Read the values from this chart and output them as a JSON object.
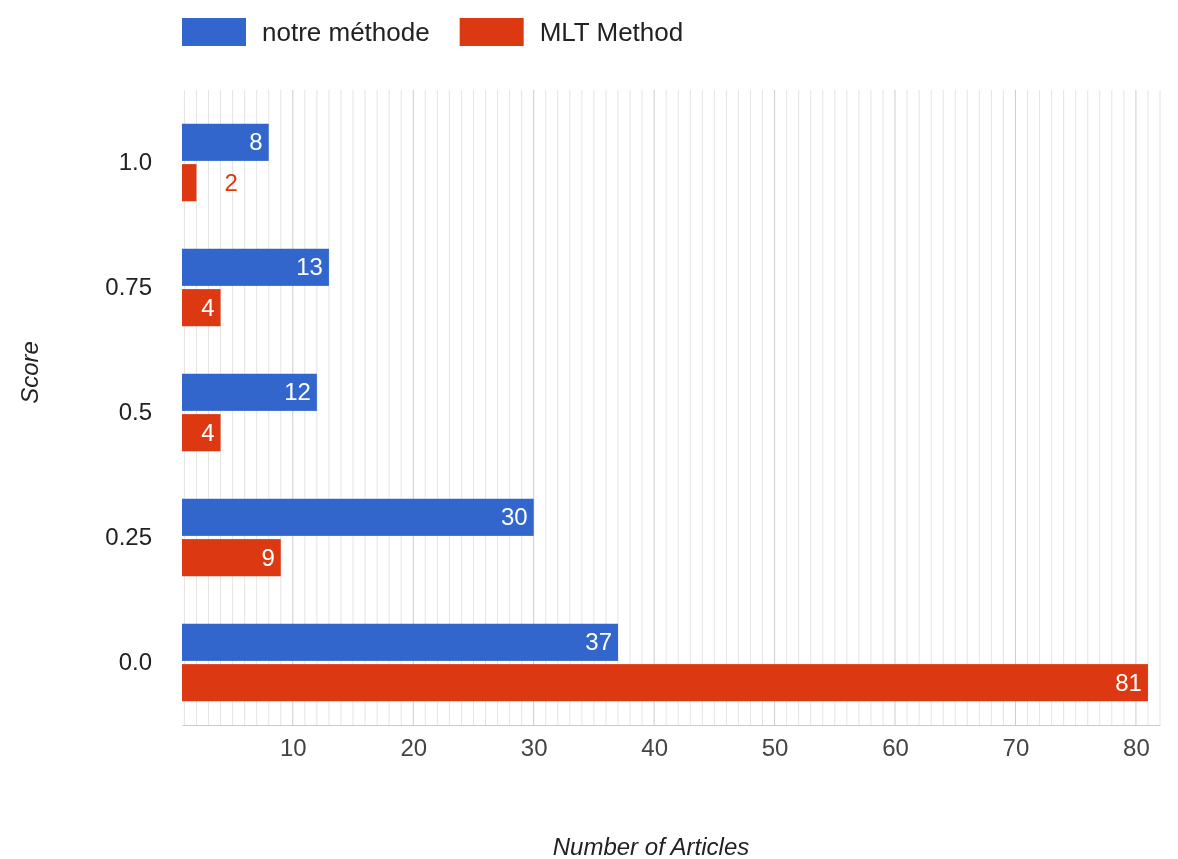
{
  "chart_data": {
    "type": "bar",
    "orientation": "horizontal",
    "xlabel": "Number of Articles",
    "ylabel": "Score",
    "categories": [
      "1.0",
      "0.75",
      "0.5",
      "0.25",
      "0.0"
    ],
    "series": [
      {
        "name": "notre méthode",
        "color": "#3366cc",
        "values": [
          8,
          13,
          12,
          30,
          37
        ]
      },
      {
        "name": "MLT Method",
        "color": "#dc3912",
        "values": [
          2,
          4,
          4,
          9,
          81
        ]
      }
    ],
    "xlim": [
      0.8,
      82
    ],
    "xticks": [
      {
        "value": 1,
        "label": null
      },
      {
        "value": 2,
        "label": null
      },
      {
        "value": 3,
        "label": null
      },
      {
        "value": 4,
        "label": null
      },
      {
        "value": 5,
        "label": null
      },
      {
        "value": 6,
        "label": null
      },
      {
        "value": 7,
        "label": null
      },
      {
        "value": 8,
        "label": null
      },
      {
        "value": 9,
        "label": null
      },
      10,
      {
        "value": 11,
        "label": null
      },
      {
        "value": 12,
        "label": null
      },
      {
        "value": 13,
        "label": null
      },
      {
        "value": 14,
        "label": null
      },
      {
        "value": 15,
        "label": null
      },
      {
        "value": 16,
        "label": null
      },
      {
        "value": 17,
        "label": null
      },
      {
        "value": 18,
        "label": null
      },
      {
        "value": 19,
        "label": null
      },
      20,
      {
        "value": 21,
        "label": null
      },
      {
        "value": 22,
        "label": null
      },
      {
        "value": 23,
        "label": null
      },
      {
        "value": 24,
        "label": null
      },
      {
        "value": 25,
        "label": null
      },
      {
        "value": 26,
        "label": null
      },
      {
        "value": 27,
        "label": null
      },
      {
        "value": 28,
        "label": null
      },
      {
        "value": 29,
        "label": null
      },
      30,
      {
        "value": 31,
        "label": null
      },
      {
        "value": 32,
        "label": null
      },
      {
        "value": 33,
        "label": null
      },
      {
        "value": 34,
        "label": null
      },
      {
        "value": 35,
        "label": null
      },
      {
        "value": 36,
        "label": null
      },
      {
        "value": 37,
        "label": null
      },
      {
        "value": 38,
        "label": null
      },
      {
        "value": 39,
        "label": null
      },
      40,
      {
        "value": 41,
        "label": null
      },
      {
        "value": 42,
        "label": null
      },
      {
        "value": 43,
        "label": null
      },
      {
        "value": 44,
        "label": null
      },
      {
        "value": 45,
        "label": null
      },
      {
        "value": 46,
        "label": null
      },
      {
        "value": 47,
        "label": null
      },
      {
        "value": 48,
        "label": null
      },
      {
        "value": 49,
        "label": null
      },
      50,
      {
        "value": 51,
        "label": null
      },
      {
        "value": 52,
        "label": null
      },
      {
        "value": 53,
        "label": null
      },
      {
        "value": 54,
        "label": null
      },
      {
        "value": 55,
        "label": null
      },
      {
        "value": 56,
        "label": null
      },
      {
        "value": 57,
        "label": null
      },
      {
        "value": 58,
        "label": null
      },
      {
        "value": 59,
        "label": null
      },
      60,
      {
        "value": 61,
        "label": null
      },
      {
        "value": 62,
        "label": null
      },
      {
        "value": 63,
        "label": null
      },
      {
        "value": 64,
        "label": null
      },
      {
        "value": 65,
        "label": null
      },
      {
        "value": 66,
        "label": null
      },
      {
        "value": 67,
        "label": null
      },
      {
        "value": 68,
        "label": null
      },
      {
        "value": 69,
        "label": null
      },
      70,
      {
        "value": 71,
        "label": null
      },
      {
        "value": 72,
        "label": null
      },
      {
        "value": 73,
        "label": null
      },
      {
        "value": 74,
        "label": null
      },
      {
        "value": 75,
        "label": null
      },
      {
        "value": 76,
        "label": null
      },
      {
        "value": 77,
        "label": null
      },
      {
        "value": 78,
        "label": null
      },
      {
        "value": 79,
        "label": null
      },
      80,
      {
        "value": 81,
        "label": null
      },
      {
        "value": 82,
        "label": null
      }
    ],
    "grid": "x",
    "legend": "top",
    "data_labels": true
  }
}
